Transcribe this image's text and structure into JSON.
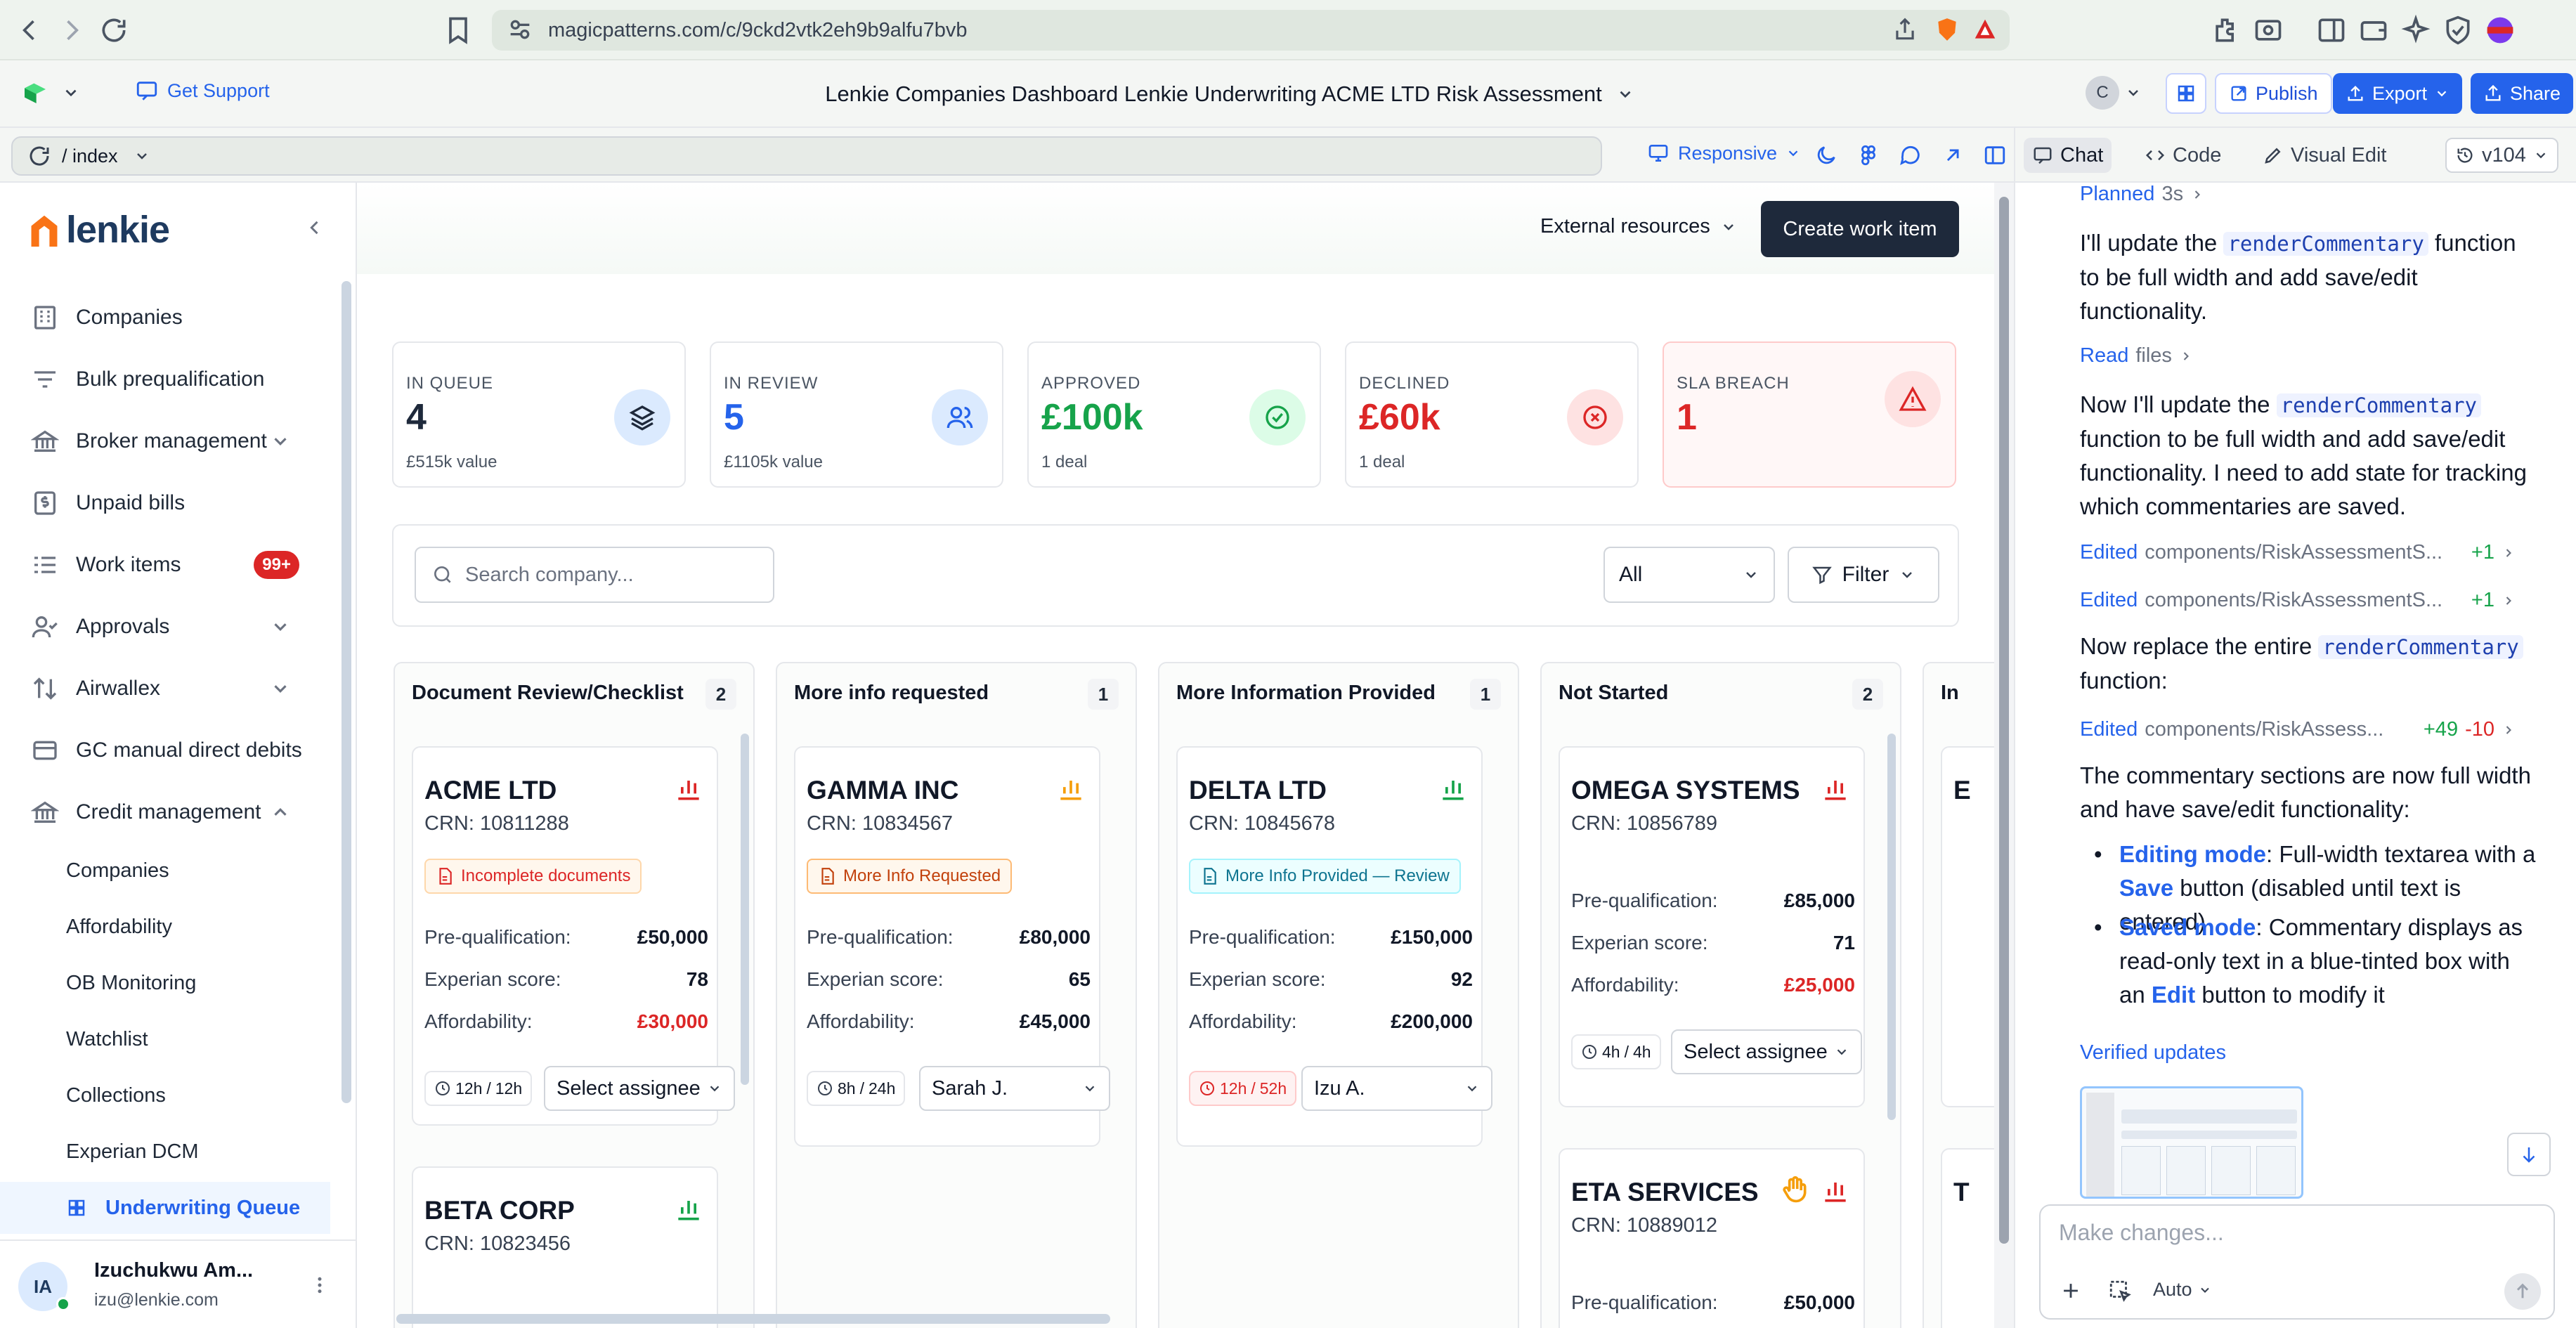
{
  "browser": {
    "url": "magicpatterns.com/c/9ckd2vtk2eh9b9alfu7bvb"
  },
  "app_header": {
    "support_label": "Get Support",
    "project_title": "Lenkie Companies Dashboard Lenkie Underwriting ACME LTD Risk Assessment",
    "avatar_letter": "C",
    "publish_label": "Publish",
    "export_label": "Export",
    "share_label": "Share"
  },
  "preview_bar": {
    "route": "/ index",
    "responsive_label": "Responsive"
  },
  "right_tabs": {
    "chat": "Chat",
    "code": "Code",
    "visual_edit": "Visual Edit",
    "version": "v104"
  },
  "sidebar": {
    "logo_text": "lenkie",
    "items": [
      {
        "label": "Companies"
      },
      {
        "label": "Bulk prequalification"
      },
      {
        "label": "Broker management"
      },
      {
        "label": "Unpaid bills"
      },
      {
        "label": "Work items",
        "badge": "99+"
      },
      {
        "label": "Approvals"
      },
      {
        "label": "Airwallex"
      },
      {
        "label": "GC manual direct debits"
      },
      {
        "label": "Credit management"
      }
    ],
    "sub_items": [
      "Companies",
      "Affordability",
      "OB Monitoring",
      "Watchlist",
      "Collections",
      "Experian DCM",
      "Underwriting Queue"
    ],
    "user": {
      "initials": "IA",
      "name": "Izuchukwu Am...",
      "email": "izu@lenkie.com"
    }
  },
  "main": {
    "external_resources": "External resources",
    "create_button": "Create work item",
    "stats": [
      {
        "label": "IN QUEUE",
        "value": "4",
        "sub": "£515k value"
      },
      {
        "label": "IN REVIEW",
        "value": "5",
        "sub": "£1105k value"
      },
      {
        "label": "APPROVED",
        "value": "£100k",
        "sub": "1 deal"
      },
      {
        "label": "DECLINED",
        "value": "£60k",
        "sub": "1 deal"
      },
      {
        "label": "SLA BREACH",
        "value": "1",
        "sub": ""
      }
    ],
    "search_placeholder": "Search company...",
    "filter_select": "All",
    "filter_button": "Filter",
    "labels": {
      "prequal": "Pre-qualification:",
      "experian": "Experian score:",
      "affordability": "Affordability:"
    },
    "columns": [
      {
        "title": "Document Review/Checklist",
        "count": "2",
        "cards": [
          {
            "name": "ACME LTD",
            "crn": "CRN: 10811288",
            "tag": "Incomplete documents",
            "prequal": "£50,000",
            "experian": "78",
            "affordability": "£30,000",
            "timer_a": "12h",
            "timer_b": "12h",
            "assignee": "Select assignee"
          },
          {
            "name": "BETA CORP",
            "crn": "CRN: 10823456"
          }
        ]
      },
      {
        "title": "More info requested",
        "count": "1",
        "cards": [
          {
            "name": "GAMMA INC",
            "crn": "CRN: 10834567",
            "tag": "More Info Requested",
            "prequal": "£80,000",
            "experian": "65",
            "affordability": "£45,000",
            "timer_a": "8h",
            "timer_b": "24h",
            "assignee": "Sarah J."
          }
        ]
      },
      {
        "title": "More Information Provided",
        "count": "1",
        "cards": [
          {
            "name": "DELTA LTD",
            "crn": "CRN: 10845678",
            "tag": "More Info Provided — Review",
            "prequal": "£150,000",
            "experian": "92",
            "affordability": "£200,000",
            "timer_a": "12h",
            "timer_b": "52h",
            "assignee": "Izu A."
          }
        ]
      },
      {
        "title": "Not Started",
        "count": "2",
        "cards": [
          {
            "name": "OMEGA SYSTEMS",
            "crn": "CRN: 10856789",
            "prequal": "£85,000",
            "experian": "71",
            "affordability": "£25,000",
            "timer_a": "4h",
            "timer_b": "4h",
            "assignee": "Select assignee"
          },
          {
            "name": "ETA SERVICES",
            "crn": "CRN: 10889012",
            "prequal_partial": "Pre-qualification:",
            "prequal_value_partial": "£50,000"
          }
        ]
      },
      {
        "title": "In",
        "partial_a": "E",
        "partial_b": "T"
      }
    ]
  },
  "chat": {
    "planned": "Planned",
    "planned_time": "3s",
    "msg1_a": "I'll update the ",
    "msg1_code": "renderCommentary",
    "msg1_b": " function to be full width and add save/edit functionality.",
    "read": "Read",
    "read_files": "files",
    "msg2_a": "Now I'll update the ",
    "msg2_code": "renderCommentary",
    "msg2_b": " function to be full width and add save/edit functionality. I need to add state for tracking which commentaries are saved.",
    "edited_label": "Edited",
    "edit1": "components/RiskAssessmentS...",
    "edit1_diff": "+1",
    "edit2": "components/RiskAssessmentS...",
    "edit2_diff": "+1",
    "msg3_a": "Now replace the entire ",
    "msg3_code": "renderCommentary",
    "msg3_b": " function:",
    "edit3": "components/RiskAssess...",
    "edit3_add": "+49",
    "edit3_del": "-10",
    "msg4": "The commentary sections are now full width and have save/edit functionality:",
    "bullet1_title": "Editing mode",
    "bullet1_a": ": Full-width textarea with a ",
    "bullet1_save": "Save",
    "bullet1_b": " button (disabled until text is entered)",
    "bullet2_title": "Saved mode",
    "bullet2_a": ": Commentary displays as read-only text in a blue-tinted box with an ",
    "bullet2_edit": "Edit",
    "bullet2_b": " button to modify it",
    "verified": "Verified updates",
    "input_placeholder": "Make changes...",
    "auto_label": "Auto"
  },
  "colors": {
    "navy": "#1e293b",
    "green": "#16a34a",
    "red": "#dc2626",
    "blue": "#2563eb",
    "orange": "#ea580c"
  }
}
